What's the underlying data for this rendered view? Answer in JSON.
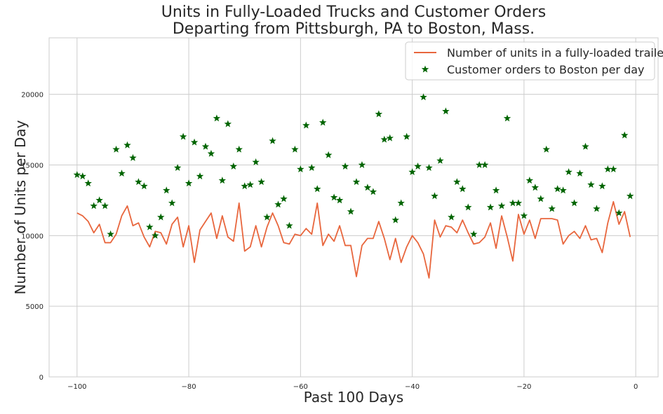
{
  "chart_data": {
    "type": "line+scatter",
    "title_lines": [
      "Units in Fully-Loaded Trucks and Customer Orders",
      "Departing from Pittsburgh, PA to Boston, Mass."
    ],
    "xlabel": "Past 100 Days",
    "ylabel": "Number of Units per Day",
    "xlim": [
      -105,
      4
    ],
    "ylim": [
      0,
      24000
    ],
    "xticks": [
      -100,
      -80,
      -60,
      -40,
      -20,
      0
    ],
    "yticks": [
      0,
      5000,
      10000,
      15000,
      20000
    ],
    "grid": true,
    "legend_position": "top-right",
    "series": [
      {
        "name": "Number of units in a fully-loaded trailer",
        "kind": "line",
        "color": "#e8663d",
        "x": [
          -100,
          -99,
          -98,
          -97,
          -96,
          -95,
          -94,
          -93,
          -92,
          -91,
          -90,
          -89,
          -88,
          -87,
          -86,
          -85,
          -84,
          -83,
          -82,
          -81,
          -80,
          -79,
          -78,
          -77,
          -76,
          -75,
          -74,
          -73,
          -72,
          -71,
          -70,
          -69,
          -68,
          -67,
          -66,
          -65,
          -64,
          -63,
          -62,
          -61,
          -60,
          -59,
          -58,
          -57,
          -56,
          -55,
          -54,
          -53,
          -52,
          -51,
          -50,
          -49,
          -48,
          -47,
          -46,
          -45,
          -44,
          -43,
          -42,
          -41,
          -40,
          -39,
          -38,
          -37,
          -36,
          -35,
          -34,
          -33,
          -32,
          -31,
          -30,
          -29,
          -28,
          -27,
          -26,
          -25,
          -24,
          -23,
          -22,
          -21,
          -20,
          -19,
          -18,
          -17,
          -16,
          -15,
          -14,
          -13,
          -12,
          -11,
          -10,
          -9,
          -8,
          -7,
          -6,
          -5,
          -4,
          -3,
          -2,
          -1
        ],
        "values": [
          11600,
          11400,
          11000,
          10200,
          10800,
          9500,
          9500,
          10100,
          11400,
          12100,
          10700,
          10900,
          9900,
          9200,
          10300,
          10200,
          9400,
          10800,
          11300,
          9200,
          10700,
          8100,
          10400,
          11000,
          11600,
          9800,
          11400,
          9900,
          9600,
          12300,
          8900,
          9200,
          10700,
          9200,
          10600,
          11600,
          10700,
          9500,
          9400,
          10100,
          10000,
          10500,
          10100,
          12300,
          9300,
          10100,
          9600,
          10700,
          9300,
          9300,
          7100,
          9300,
          9800,
          9800,
          11000,
          9800,
          8300,
          9800,
          8100,
          9200,
          10000,
          9500,
          8700,
          7000,
          11100,
          9900,
          10700,
          10600,
          10200,
          11100,
          10200,
          9400,
          9500,
          9900,
          10900,
          9100,
          11400,
          9900,
          8200,
          11500,
          10100,
          11100,
          9800,
          11200,
          11200,
          11200,
          11100,
          9400,
          10000,
          10300,
          9800,
          10700,
          9700,
          9800,
          8800,
          10900,
          12400,
          10800,
          11700,
          9900
        ]
      },
      {
        "name": "Customer orders to Boston per day",
        "kind": "scatter",
        "marker": "star",
        "color": "#006400",
        "x": [
          -100,
          -99,
          -98,
          -97,
          -96,
          -95,
          -94,
          -93,
          -92,
          -91,
          -90,
          -89,
          -88,
          -87,
          -86,
          -85,
          -84,
          -83,
          -82,
          -81,
          -80,
          -79,
          -78,
          -77,
          -76,
          -75,
          -74,
          -73,
          -72,
          -71,
          -70,
          -69,
          -68,
          -67,
          -66,
          -65,
          -64,
          -63,
          -62,
          -61,
          -60,
          -59,
          -58,
          -57,
          -56,
          -55,
          -54,
          -53,
          -52,
          -51,
          -50,
          -49,
          -48,
          -47,
          -46,
          -45,
          -44,
          -43,
          -42,
          -41,
          -40,
          -39,
          -38,
          -37,
          -36,
          -35,
          -34,
          -33,
          -32,
          -31,
          -30,
          -29,
          -28,
          -27,
          -26,
          -25,
          -24,
          -23,
          -22,
          -21,
          -20,
          -19,
          -18,
          -17,
          -16,
          -15,
          -14,
          -13,
          -12,
          -11,
          -10,
          -9,
          -8,
          -7,
          -6,
          -5,
          -4,
          -3,
          -2,
          -1
        ],
        "values": [
          14300,
          14200,
          13700,
          12100,
          12500,
          12100,
          10100,
          16100,
          14400,
          16400,
          15500,
          13800,
          13500,
          10600,
          10000,
          11300,
          13200,
          12300,
          14800,
          17000,
          13700,
          16600,
          14200,
          16300,
          15800,
          18300,
          13900,
          17900,
          14900,
          16100,
          13500,
          13600,
          15200,
          13800,
          11300,
          16700,
          12200,
          12600,
          10700,
          16100,
          14700,
          17800,
          14800,
          13300,
          18000,
          15700,
          12700,
          12500,
          14900,
          11700,
          13800,
          15000,
          13400,
          13100,
          18600,
          16800,
          16900,
          11100,
          12300,
          17000,
          14500,
          14900,
          19800,
          14800,
          12800,
          15300,
          18800,
          11300,
          13800,
          13300,
          12000,
          10100,
          15000,
          15000,
          12000,
          13200,
          12100,
          18300,
          12300,
          12300,
          11400,
          13900,
          13400,
          12600,
          16100,
          11900,
          13300,
          13200,
          14500,
          12300,
          14400,
          16300,
          13600,
          11900,
          13500,
          14700,
          14700,
          11600,
          17100,
          12800
        ]
      }
    ]
  }
}
